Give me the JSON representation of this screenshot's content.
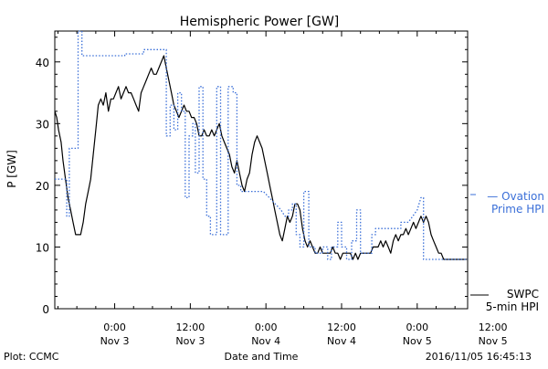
{
  "chart_data": {
    "type": "line",
    "title": "Hemispheric Power [GW]",
    "xlabel": "Date and Time",
    "ylabel": "P [GW]",
    "ylim": [
      0,
      45
    ],
    "xlim": [
      -9.5,
      56
    ],
    "yticks": [
      0,
      10,
      20,
      30,
      40
    ],
    "xticks": [
      {
        "x": 0,
        "line1": "0:00",
        "line2": "Nov 3"
      },
      {
        "x": 12,
        "line1": "12:00",
        "line2": "Nov 3"
      },
      {
        "x": 24,
        "line1": "0:00",
        "line2": "Nov 4"
      },
      {
        "x": 36,
        "line1": "12:00",
        "line2": "Nov 4"
      },
      {
        "x": 48,
        "line1": "0:00",
        "line2": "Nov 5"
      },
      {
        "x": 60,
        "line1": "12:00",
        "line2": "Nov 5"
      }
    ],
    "x_unit": "hours from 2016-11-03 00:00",
    "grid": false,
    "colors": {
      "swpc": "#000000",
      "ovation": "#3a6fd8"
    },
    "series": [
      {
        "name": "SWPC 5-min HPI",
        "label_lines": [
          "SWPC",
          "5-min HPI"
        ],
        "style": "solid",
        "points": [
          [
            -9.5,
            32
          ],
          [
            -9.2,
            31
          ],
          [
            -8.9,
            29
          ],
          [
            -8.5,
            27
          ],
          [
            -8.2,
            24
          ],
          [
            -7.8,
            21
          ],
          [
            -7.4,
            18
          ],
          [
            -7,
            16
          ],
          [
            -6.6,
            14
          ],
          [
            -6.2,
            12
          ],
          [
            -5.8,
            12
          ],
          [
            -5.4,
            12
          ],
          [
            -5,
            14
          ],
          [
            -4.6,
            17
          ],
          [
            -4.2,
            19
          ],
          [
            -3.8,
            21
          ],
          [
            -3.4,
            25
          ],
          [
            -3,
            29
          ],
          [
            -2.6,
            33
          ],
          [
            -2.2,
            34
          ],
          [
            -1.8,
            33
          ],
          [
            -1.4,
            35
          ],
          [
            -1,
            32
          ],
          [
            -0.6,
            34
          ],
          [
            -0.2,
            34
          ],
          [
            0.2,
            35
          ],
          [
            0.6,
            36
          ],
          [
            1,
            34
          ],
          [
            1.4,
            35
          ],
          [
            1.8,
            36
          ],
          [
            2.2,
            35
          ],
          [
            2.6,
            35
          ],
          [
            3,
            34
          ],
          [
            3.4,
            33
          ],
          [
            3.8,
            32
          ],
          [
            4.2,
            35
          ],
          [
            4.6,
            36
          ],
          [
            5,
            37
          ],
          [
            5.4,
            38
          ],
          [
            5.8,
            39
          ],
          [
            6.2,
            38
          ],
          [
            6.6,
            38
          ],
          [
            7,
            39
          ],
          [
            7.4,
            40
          ],
          [
            7.8,
            41
          ],
          [
            8.2,
            39
          ],
          [
            8.6,
            37
          ],
          [
            9,
            35
          ],
          [
            9.4,
            33
          ],
          [
            9.8,
            32
          ],
          [
            10.2,
            31
          ],
          [
            10.6,
            32
          ],
          [
            11,
            33
          ],
          [
            11.4,
            32
          ],
          [
            11.8,
            32
          ],
          [
            12.2,
            31
          ],
          [
            12.6,
            31
          ],
          [
            13,
            30
          ],
          [
            13.4,
            28
          ],
          [
            13.8,
            28
          ],
          [
            14.2,
            29
          ],
          [
            14.6,
            28
          ],
          [
            15,
            28
          ],
          [
            15.4,
            29
          ],
          [
            15.8,
            28
          ],
          [
            16.2,
            29
          ],
          [
            16.6,
            30
          ],
          [
            17,
            28
          ],
          [
            17.4,
            27
          ],
          [
            17.8,
            26
          ],
          [
            18.2,
            25
          ],
          [
            18.6,
            23
          ],
          [
            19,
            22
          ],
          [
            19.4,
            24
          ],
          [
            19.8,
            22
          ],
          [
            20.2,
            20
          ],
          [
            20.6,
            19
          ],
          [
            21,
            21
          ],
          [
            21.4,
            22
          ],
          [
            21.8,
            25
          ],
          [
            22.2,
            27
          ],
          [
            22.6,
            28
          ],
          [
            23,
            27
          ],
          [
            23.4,
            26
          ],
          [
            23.8,
            24
          ],
          [
            24.2,
            22
          ],
          [
            24.6,
            20
          ],
          [
            25,
            18
          ],
          [
            25.4,
            16
          ],
          [
            25.8,
            14
          ],
          [
            26.2,
            12
          ],
          [
            26.6,
            11
          ],
          [
            27,
            13
          ],
          [
            27.4,
            15
          ],
          [
            27.8,
            14
          ],
          [
            28.2,
            15
          ],
          [
            28.6,
            17
          ],
          [
            29,
            17
          ],
          [
            29.4,
            16
          ],
          [
            29.8,
            13
          ],
          [
            30.2,
            11
          ],
          [
            30.6,
            10
          ],
          [
            31,
            11
          ],
          [
            31.4,
            10
          ],
          [
            31.8,
            9
          ],
          [
            32.2,
            9
          ],
          [
            32.6,
            10
          ],
          [
            33,
            9
          ],
          [
            33.4,
            9
          ],
          [
            33.8,
            9
          ],
          [
            34.2,
            9
          ],
          [
            34.6,
            10
          ],
          [
            35,
            9
          ],
          [
            35.4,
            9
          ],
          [
            35.8,
            8
          ],
          [
            36.2,
            9
          ],
          [
            36.6,
            9
          ],
          [
            37,
            9
          ],
          [
            37.4,
            9
          ],
          [
            37.8,
            8
          ],
          [
            38.2,
            9
          ],
          [
            38.6,
            8
          ],
          [
            39,
            9
          ],
          [
            39.4,
            9
          ],
          [
            39.8,
            9
          ],
          [
            40.2,
            9
          ],
          [
            40.6,
            9
          ],
          [
            41,
            10
          ],
          [
            41.4,
            10
          ],
          [
            41.8,
            10
          ],
          [
            42.2,
            11
          ],
          [
            42.6,
            10
          ],
          [
            43,
            11
          ],
          [
            43.4,
            10
          ],
          [
            43.8,
            9
          ],
          [
            44.2,
            11
          ],
          [
            44.6,
            12
          ],
          [
            45,
            11
          ],
          [
            45.4,
            12
          ],
          [
            45.8,
            12
          ],
          [
            46.2,
            13
          ],
          [
            46.6,
            12
          ],
          [
            47,
            13
          ],
          [
            47.4,
            14
          ],
          [
            47.8,
            13
          ],
          [
            48.2,
            14
          ],
          [
            48.6,
            15
          ],
          [
            49,
            14
          ],
          [
            49.4,
            15
          ],
          [
            49.8,
            14
          ],
          [
            50.2,
            12
          ],
          [
            50.6,
            11
          ],
          [
            51,
            10
          ],
          [
            51.4,
            9
          ],
          [
            51.8,
            9
          ],
          [
            52.2,
            8
          ],
          [
            52.6,
            8
          ],
          [
            53,
            8
          ],
          [
            53.4,
            8
          ],
          [
            53.8,
            8
          ],
          [
            54.2,
            8
          ],
          [
            54.6,
            8
          ],
          [
            55,
            8
          ],
          [
            55.6,
            8
          ]
        ]
      },
      {
        "name": "Ovation Prime HPI",
        "label_lines": [
          "— Ovation",
          "Prime HPI"
        ],
        "style": "dotted",
        "points": [
          [
            -9.5,
            21
          ],
          [
            -7.6,
            21
          ],
          [
            -7.6,
            15
          ],
          [
            -7.2,
            15
          ],
          [
            -7.2,
            26
          ],
          [
            -5.8,
            26
          ],
          [
            -5.8,
            45
          ],
          [
            -5.2,
            45
          ],
          [
            -5.2,
            41
          ],
          [
            0,
            41
          ],
          [
            1.6,
            41
          ],
          [
            1.6,
            41.3
          ],
          [
            4.6,
            41.3
          ],
          [
            4.6,
            42
          ],
          [
            8.2,
            42
          ],
          [
            8.2,
            28
          ],
          [
            8.8,
            28
          ],
          [
            8.8,
            33
          ],
          [
            9.4,
            33
          ],
          [
            9.4,
            29
          ],
          [
            10,
            29
          ],
          [
            10,
            35
          ],
          [
            10.6,
            35
          ],
          [
            10.6,
            32
          ],
          [
            11.2,
            32
          ],
          [
            11.2,
            18
          ],
          [
            11.8,
            18
          ],
          [
            11.8,
            28
          ],
          [
            12.4,
            28
          ],
          [
            12.4,
            30
          ],
          [
            12.8,
            30
          ],
          [
            12.8,
            22
          ],
          [
            13.4,
            22
          ],
          [
            13.4,
            36
          ],
          [
            14,
            36
          ],
          [
            14,
            21
          ],
          [
            14.6,
            21
          ],
          [
            14.6,
            15
          ],
          [
            15.2,
            15
          ],
          [
            15.2,
            12
          ],
          [
            16.2,
            12
          ],
          [
            16.2,
            36
          ],
          [
            16.8,
            36
          ],
          [
            16.8,
            12
          ],
          [
            18,
            12
          ],
          [
            18,
            36
          ],
          [
            18.8,
            36
          ],
          [
            18.8,
            35
          ],
          [
            19.4,
            35
          ],
          [
            19.4,
            20
          ],
          [
            20,
            20
          ],
          [
            20,
            19
          ],
          [
            22,
            19
          ],
          [
            22,
            19
          ],
          [
            23.6,
            19
          ],
          [
            26.4,
            16
          ],
          [
            27,
            15
          ],
          [
            27.6,
            15
          ],
          [
            27.6,
            16
          ],
          [
            28.2,
            16
          ],
          [
            28.2,
            17
          ],
          [
            28.8,
            17
          ],
          [
            28.8,
            12
          ],
          [
            29.4,
            12
          ],
          [
            29.4,
            10
          ],
          [
            30,
            10
          ],
          [
            30,
            19
          ],
          [
            30.8,
            19
          ],
          [
            30.8,
            10
          ],
          [
            31.8,
            10
          ],
          [
            31.8,
            9
          ],
          [
            33,
            9
          ],
          [
            33,
            10
          ],
          [
            33.8,
            10
          ],
          [
            33.8,
            8
          ],
          [
            34.4,
            8
          ],
          [
            34.4,
            10
          ],
          [
            35.4,
            10
          ],
          [
            35.4,
            14
          ],
          [
            36,
            14
          ],
          [
            36,
            10
          ],
          [
            36.8,
            10
          ],
          [
            36.8,
            8
          ],
          [
            37.6,
            8
          ],
          [
            37.6,
            11
          ],
          [
            38.4,
            11
          ],
          [
            38.4,
            16
          ],
          [
            39,
            16
          ],
          [
            39,
            9
          ],
          [
            40.8,
            9
          ],
          [
            40.8,
            12
          ],
          [
            41.4,
            12
          ],
          [
            41.4,
            13
          ],
          [
            45.4,
            13
          ],
          [
            45.4,
            14
          ],
          [
            46.6,
            14
          ],
          [
            48,
            16
          ],
          [
            48.6,
            18
          ],
          [
            49,
            18
          ],
          [
            49,
            8
          ],
          [
            56,
            8
          ]
        ]
      }
    ]
  },
  "footer": {
    "left": "Plot: CCMC",
    "center": "Date and Time",
    "right": "2016/11/05 16:45:13"
  }
}
